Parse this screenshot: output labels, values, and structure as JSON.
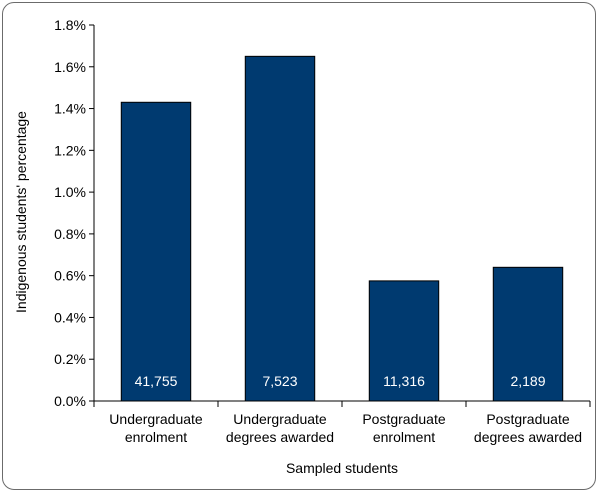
{
  "chart_data": {
    "type": "bar",
    "categories": [
      [
        "Undergraduate",
        "enrolment"
      ],
      [
        "Undergraduate",
        "degrees awarded"
      ],
      [
        "Postgraduate",
        "enrolment"
      ],
      [
        "Postgraduate",
        "degrees awarded"
      ]
    ],
    "values": [
      1.43,
      1.65,
      0.575,
      0.64
    ],
    "data_labels": [
      "41,755",
      "7,523",
      "11,316",
      "2,189"
    ],
    "xlabel": "Sampled students",
    "ylabel": "Indigenous students' percentage",
    "ylim": [
      0,
      1.8
    ],
    "y_ticks": [
      0,
      0.2,
      0.4,
      0.6,
      0.8,
      1.0,
      1.2,
      1.4,
      1.6,
      1.8
    ],
    "y_tick_labels": [
      "0.0%",
      "0.2%",
      "0.4%",
      "0.6%",
      "0.8%",
      "1.0%",
      "1.2%",
      "1.4%",
      "1.6%",
      "1.8%"
    ],
    "grid": false,
    "legend": "none",
    "bar_color": "#003A70"
  }
}
